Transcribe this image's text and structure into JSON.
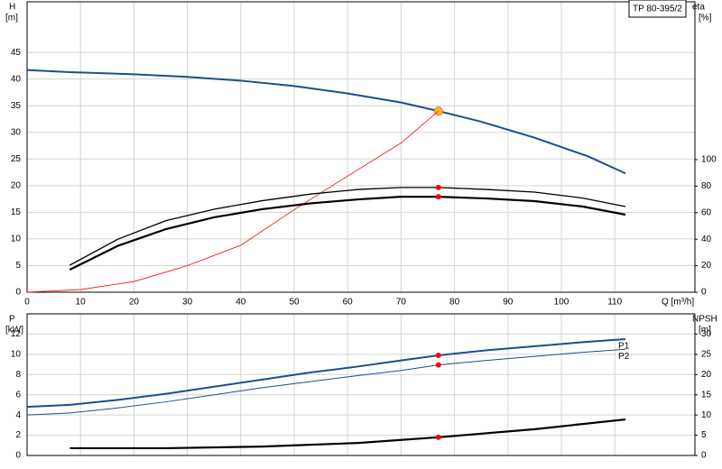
{
  "chart_data": [
    {
      "type": "line",
      "title": "TP 80-395/2",
      "ylabel": "H",
      "yunit": "[m]",
      "y2label": "eta",
      "y2unit": "[%]",
      "xlabel": "Q [m³/h]",
      "xlim": [
        0,
        125
      ],
      "xticks": [
        0,
        10,
        20,
        30,
        40,
        50,
        60,
        70,
        80,
        90,
        100,
        110
      ],
      "ylim": [
        0,
        54.5
      ],
      "yticks": [
        0,
        5,
        10,
        15,
        20,
        25,
        30,
        35,
        40,
        45
      ],
      "y2lim": [
        0,
        219
      ],
      "y2ticks": [
        0,
        20,
        40,
        60,
        80,
        100
      ],
      "grid": true,
      "duty_q": 77,
      "series": [
        {
          "color": "#1f4e8c",
          "line_width": 2,
          "marker_color": "#ffc000",
          "x": [
            0,
            8,
            20,
            30,
            40,
            50,
            60,
            70,
            77,
            85,
            95,
            105,
            112
          ],
          "values": [
            41.7,
            41.3,
            40.9,
            40.4,
            39.7,
            38.7,
            37.3,
            35.6,
            34.0,
            32.0,
            29.0,
            25.5,
            22.3
          ]
        },
        {
          "color": "#ff0000",
          "line_width": 0.8,
          "x": [
            0,
            10,
            20,
            30,
            40,
            50,
            60,
            70,
            77
          ],
          "values": [
            0,
            0.5,
            2,
            5,
            8.8,
            15.5,
            21.8,
            28,
            34
          ]
        },
        {
          "color": "#000000",
          "line_width": 1.3,
          "axis": "y2",
          "marker_color": "#ff0000",
          "x": [
            8,
            17,
            26,
            35,
            44,
            53,
            62,
            70,
            77,
            86,
            95,
            104,
            112
          ],
          "values": [
            20.4,
            40,
            54,
            62.6,
            69,
            74,
            77.5,
            79,
            79,
            77.5,
            75.5,
            71,
            64.6
          ]
        },
        {
          "color": "#000000",
          "line_width": 2.2,
          "axis": "y2",
          "marker_color": "#ff0000",
          "x": [
            8,
            17,
            26,
            35,
            44,
            53,
            62,
            70,
            77,
            86,
            95,
            104,
            112
          ],
          "values": [
            17,
            35,
            47.6,
            56.5,
            62.6,
            67,
            70,
            72,
            72,
            70.7,
            68.7,
            64.6,
            58.5
          ]
        }
      ]
    },
    {
      "type": "line",
      "ylabel": "P",
      "yunit": "[kW]",
      "y2label": "NPSH",
      "y2unit": "[m]",
      "xlim": [
        0,
        125
      ],
      "ylim": [
        0,
        14
      ],
      "yticks": [
        0,
        2,
        4,
        6,
        8,
        10,
        12
      ],
      "y2lim": [
        0,
        35
      ],
      "y2ticks": [
        0,
        5,
        10,
        15,
        20,
        25,
        30
      ],
      "grid": true,
      "duty_q": 77,
      "series": [
        {
          "name": "P1",
          "color": "#1f4e8c",
          "line_width": 2,
          "marker_color": "#ff0000",
          "x": [
            0,
            8,
            17,
            26,
            35,
            44,
            53,
            62,
            70,
            77,
            86,
            95,
            104,
            112
          ],
          "values": [
            4.8,
            5.0,
            5.5,
            6.1,
            6.8,
            7.5,
            8.2,
            8.8,
            9.4,
            9.9,
            10.4,
            10.8,
            11.2,
            11.5
          ]
        },
        {
          "name": "P2",
          "color": "#1f4e8c",
          "line_width": 1,
          "marker_color": "#ff0000",
          "x": [
            0,
            8,
            17,
            26,
            35,
            44,
            53,
            62,
            70,
            77,
            86,
            95,
            104,
            112
          ],
          "values": [
            4.0,
            4.2,
            4.7,
            5.3,
            6.0,
            6.7,
            7.3,
            7.9,
            8.4,
            8.95,
            9.4,
            9.8,
            10.2,
            10.5
          ]
        },
        {
          "color": "#000000",
          "line_width": 2.2,
          "axis": "y2",
          "marker_color": "#ff0000",
          "x": [
            8,
            26,
            44,
            62,
            77,
            95,
            112
          ],
          "values": [
            1.8,
            1.8,
            2.2,
            3.1,
            4.5,
            6.5,
            8.9
          ]
        }
      ]
    }
  ]
}
